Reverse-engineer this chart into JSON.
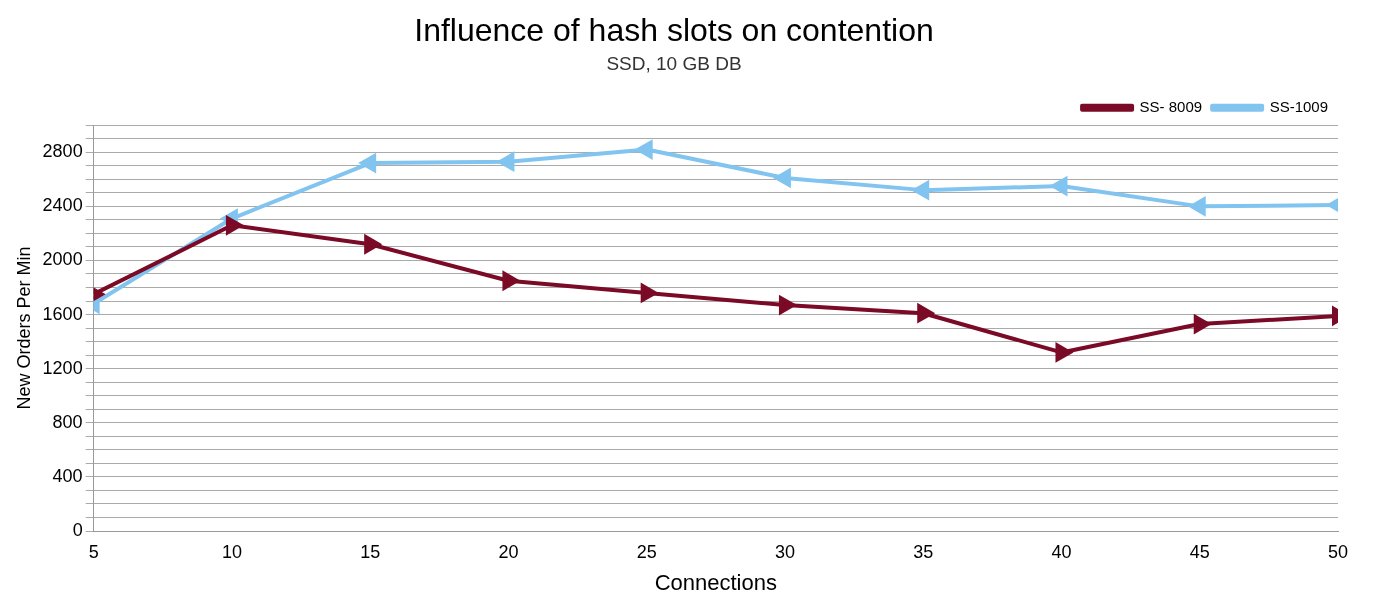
{
  "chart_data": {
    "type": "line",
    "title": "Influence of hash slots on contention",
    "subtitle": "SSD, 10 GB DB",
    "xlabel": "Connections",
    "ylabel": "New Orders Per Min",
    "x": [
      5,
      10,
      15,
      20,
      25,
      30,
      35,
      40,
      45,
      50
    ],
    "series": [
      {
        "name": "SS- 8009",
        "color": "#7b0a26",
        "values": [
          1750,
          2260,
          2120,
          1850,
          1760,
          1670,
          1610,
          1320,
          1530,
          1590
        ]
      },
      {
        "name": "SS-1009",
        "color": "#82c4f0",
        "values": [
          1680,
          2310,
          2720,
          2730,
          2820,
          2610,
          2520,
          2550,
          2400,
          2410
        ]
      }
    ],
    "xlim": [
      5,
      50
    ],
    "xticks": [
      5,
      10,
      15,
      20,
      25,
      30,
      35,
      40,
      45,
      50
    ],
    "ylim": [
      0,
      3000
    ],
    "yticks": [
      0,
      {
        "value": 100,
        "label": null
      },
      {
        "value": 200,
        "label": null
      },
      {
        "value": 300,
        "label": null
      },
      400,
      {
        "value": 500,
        "label": null
      },
      {
        "value": 600,
        "label": null
      },
      {
        "value": 700,
        "label": null
      },
      800,
      {
        "value": 900,
        "label": null
      },
      {
        "value": 1000,
        "label": null
      },
      {
        "value": 1100,
        "label": null
      },
      1200,
      {
        "value": 1300,
        "label": null
      },
      {
        "value": 1400,
        "label": null
      },
      {
        "value": 1500,
        "label": null
      },
      1600,
      {
        "value": 1700,
        "label": null
      },
      {
        "value": 1800,
        "label": null
      },
      {
        "value": 1900,
        "label": null
      },
      2000,
      {
        "value": 2100,
        "label": null
      },
      {
        "value": 2200,
        "label": null
      },
      {
        "value": 2300,
        "label": null
      },
      2400,
      {
        "value": 2500,
        "label": null
      },
      {
        "value": 2600,
        "label": null
      },
      {
        "value": 2700,
        "label": null
      },
      2800,
      {
        "value": 2900,
        "label": null
      },
      {
        "value": 3000,
        "label": null
      }
    ],
    "grid": "y",
    "legend": "top right",
    "marker": "triangle",
    "line_style": "solid"
  }
}
